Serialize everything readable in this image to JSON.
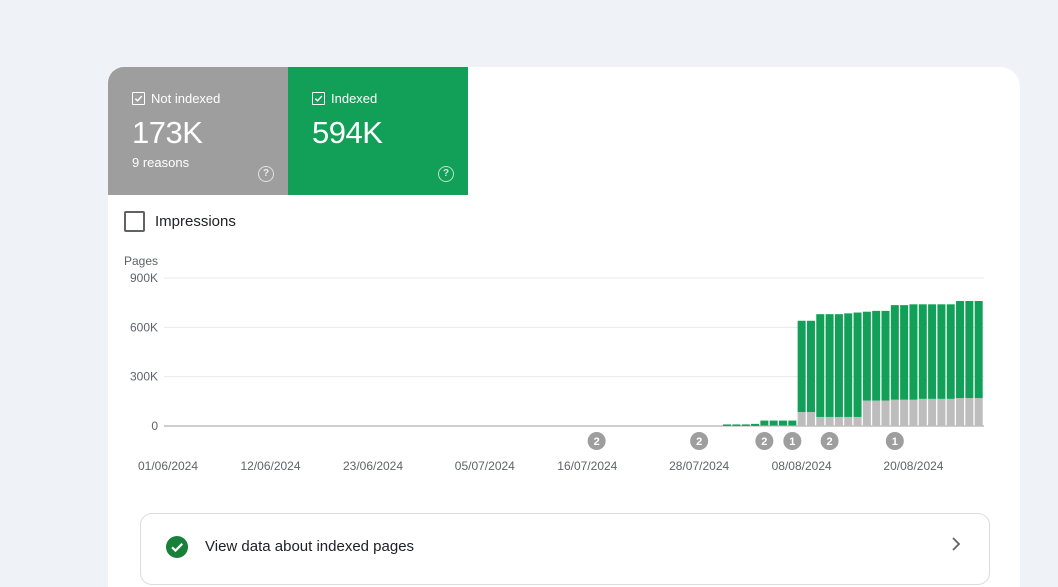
{
  "tiles": {
    "not_indexed": {
      "label": "Not indexed",
      "value": "173K",
      "sub": "9 reasons",
      "color": "#9e9e9e",
      "checked": true
    },
    "indexed": {
      "label": "Indexed",
      "value": "594K",
      "color": "#12a058",
      "checked": true
    }
  },
  "impressions": {
    "label": "Impressions",
    "checked": false
  },
  "link_row": {
    "label": "View data about indexed pages"
  },
  "chart_data": {
    "type": "bar",
    "stacked": true,
    "ylabel": "Pages",
    "ylim": [
      0,
      900000
    ],
    "yticks": [
      {
        "value": 0,
        "label": "0"
      },
      {
        "value": 300000,
        "label": "300K"
      },
      {
        "value": 600000,
        "label": "600K"
      },
      {
        "value": 900000,
        "label": "900K"
      }
    ],
    "xtick_labels": [
      "01/06/2024",
      "12/06/2024",
      "23/06/2024",
      "05/07/2024",
      "16/07/2024",
      "28/07/2024",
      "08/08/2024",
      "20/08/2024"
    ],
    "xtick_index": [
      0,
      11,
      22,
      34,
      45,
      57,
      68,
      80
    ],
    "series": [
      {
        "name": "Not indexed",
        "color": "#bdbdbd",
        "values": [
          0,
          0,
          0,
          0,
          0,
          0,
          0,
          0,
          0,
          0,
          0,
          0,
          0,
          0,
          0,
          0,
          0,
          0,
          0,
          0,
          0,
          0,
          0,
          0,
          0,
          0,
          0,
          0,
          0,
          0,
          0,
          0,
          0,
          0,
          0,
          0,
          0,
          0,
          0,
          0,
          0,
          0,
          0,
          0,
          0,
          0,
          0,
          0,
          0,
          0,
          0,
          0,
          0,
          0,
          0,
          0,
          0,
          0,
          0,
          0,
          500,
          600,
          800,
          1000,
          3000,
          3000,
          3000,
          3000,
          85000,
          85000,
          55000,
          55000,
          55000,
          55000,
          55000,
          155000,
          155000,
          155000,
          160000,
          160000,
          160000,
          165000,
          165000,
          165000,
          165000,
          170000,
          170000,
          170000
        ]
      },
      {
        "name": "Indexed",
        "color": "#12a058",
        "values": [
          0,
          0,
          0,
          0,
          0,
          0,
          0,
          0,
          0,
          0,
          0,
          0,
          0,
          0,
          0,
          0,
          0,
          0,
          0,
          0,
          0,
          0,
          0,
          0,
          0,
          0,
          0,
          0,
          0,
          0,
          0,
          0,
          0,
          0,
          0,
          0,
          0,
          0,
          0,
          0,
          0,
          0,
          0,
          0,
          0,
          0,
          0,
          0,
          0,
          0,
          0,
          0,
          0,
          0,
          0,
          0,
          0,
          0,
          0,
          0,
          9000,
          9000,
          9000,
          12000,
          30000,
          30000,
          30000,
          30000,
          555000,
          555000,
          625000,
          625000,
          625000,
          630000,
          635000,
          540000,
          545000,
          545000,
          575000,
          575000,
          580000,
          575000,
          575000,
          575000,
          575000,
          590000,
          590000,
          590000
        ]
      }
    ],
    "annotations": [
      {
        "index": 46,
        "label": "2"
      },
      {
        "index": 57,
        "label": "2"
      },
      {
        "index": 64,
        "label": "2"
      },
      {
        "index": 67,
        "label": "1"
      },
      {
        "index": 71,
        "label": "2"
      },
      {
        "index": 78,
        "label": "1"
      }
    ],
    "grid": true
  }
}
